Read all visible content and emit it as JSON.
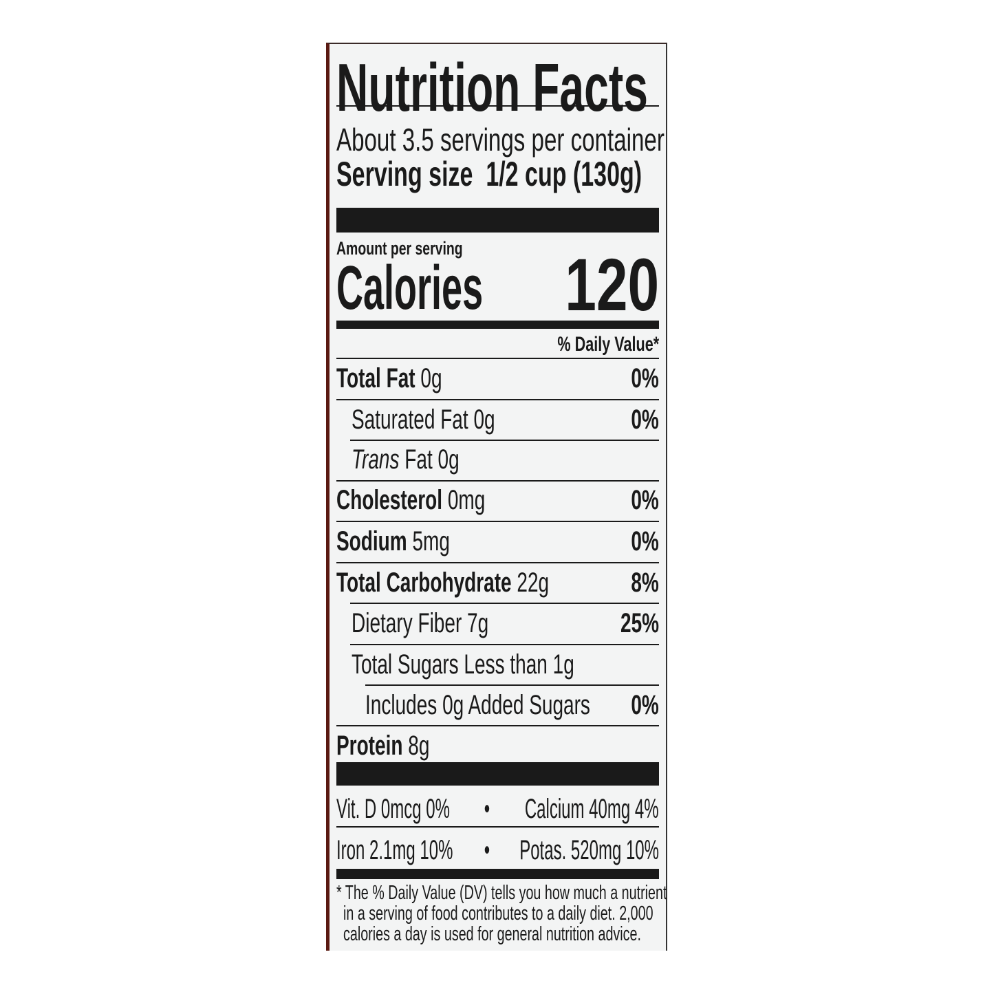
{
  "title": "Nutrition Facts",
  "servings_per_container": "About 3.5 servings per container",
  "serving_size_label": "Serving size",
  "serving_size_value": "1/2 cup (130g)",
  "amount_per_serving": "Amount per serving",
  "calories_label": "Calories",
  "calories_value": "120",
  "daily_value_header": "% Daily Value*",
  "nutrients": [
    {
      "name": "Total Fat",
      "amount": "0g",
      "dv": "0%"
    },
    {
      "name": "Saturated Fat",
      "amount": "0g",
      "dv": "0%"
    },
    {
      "name": "Trans",
      "name_suffix": "Fat",
      "amount": "0g",
      "dv": ""
    },
    {
      "name": "Cholesterol",
      "amount": "0mg",
      "dv": "0%"
    },
    {
      "name": "Sodium",
      "amount": "5mg",
      "dv": "0%"
    },
    {
      "name": "Total Carbohydrate",
      "amount": "22g",
      "dv": "8%"
    },
    {
      "name": "Dietary Fiber",
      "amount": "7g",
      "dv": "25%"
    },
    {
      "name": "Total Sugars",
      "amount": "Less than 1g",
      "dv": ""
    },
    {
      "name": "Includes 0g Added Sugars",
      "amount": "",
      "dv": "0%"
    },
    {
      "name": "Protein",
      "amount": "8g",
      "dv": ""
    }
  ],
  "vitamins": [
    {
      "left": "Vit. D 0mcg 0%",
      "right": "Calcium 40mg 4%"
    },
    {
      "left": "Iron 2.1mg 10%",
      "right": "Potas. 520mg 10%"
    }
  ],
  "bullet": "•",
  "footnote": [
    "* The % Daily Value (DV) tells you how much a nutrient",
    "in a serving of food contributes to a daily diet. 2,000",
    "calories a day is used for general nutrition advice."
  ]
}
